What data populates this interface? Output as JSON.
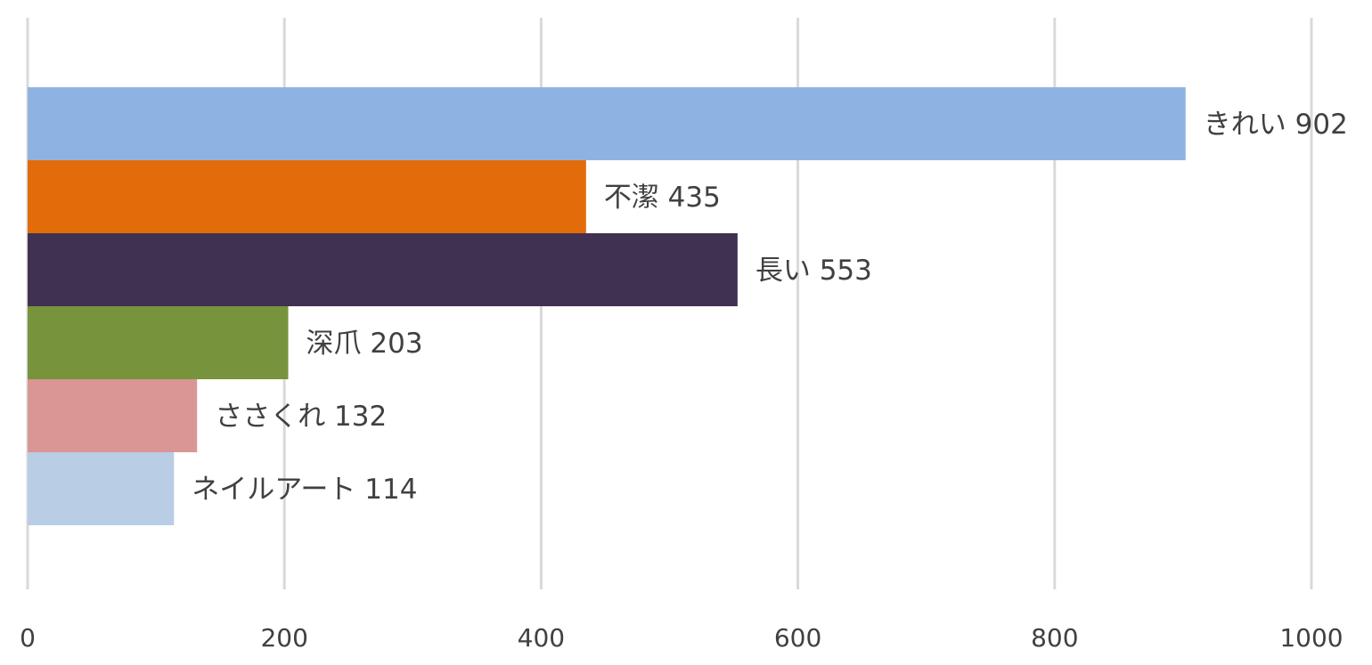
{
  "chart_data": {
    "type": "bar",
    "orientation": "horizontal",
    "categories": [
      "きれい",
      "不潔",
      "長い",
      "深爪",
      "ささくれ",
      "ネイルアート"
    ],
    "values": [
      902,
      435,
      553,
      203,
      132,
      114
    ],
    "colors": [
      "#8eb3e2",
      "#e36c0a",
      "#403151",
      "#77933c",
      "#d99694",
      "#b9cde5"
    ],
    "xlim": [
      0,
      1000
    ],
    "x_ticks": [
      "0",
      "200",
      "400",
      "600",
      "800",
      "1000"
    ],
    "data_labels": [
      "きれい 902",
      "不潔 435",
      "長い 553",
      "深爪 203",
      "ささくれ 132",
      "ネイルアート 114"
    ],
    "grid": true,
    "gridline_color": "#d9d9d9"
  }
}
